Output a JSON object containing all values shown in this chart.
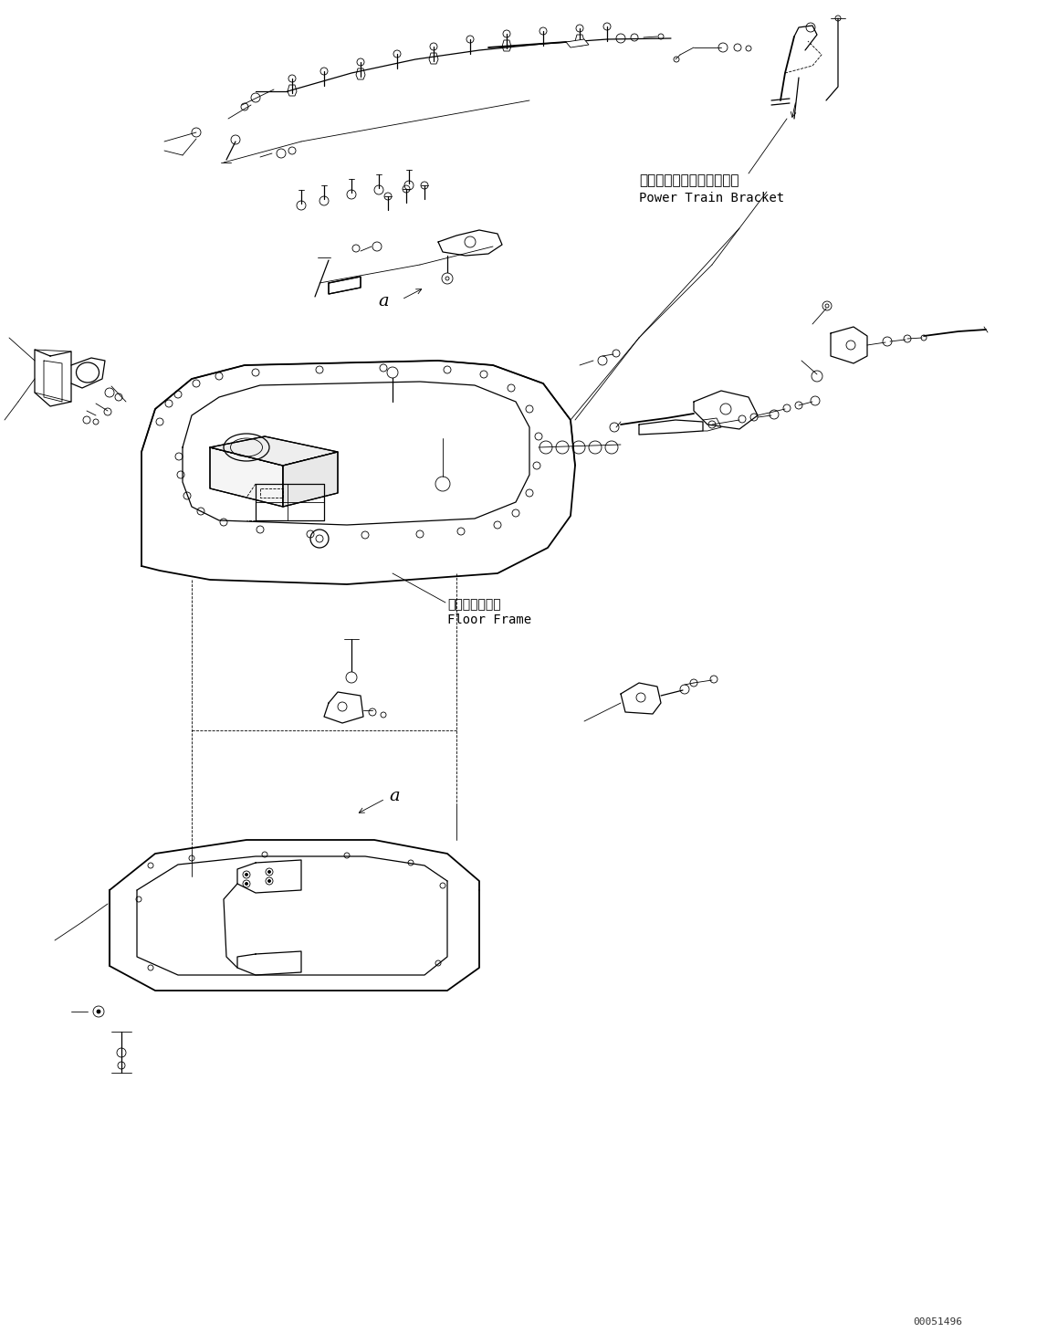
{
  "background_color": "#ffffff",
  "line_color": "#000000",
  "figure_width": 11.59,
  "figure_height": 14.59,
  "dpi": 100,
  "label_power_train_jp": "パワートレインブラケット",
  "label_power_train_en": "Power Train Bracket",
  "label_floor_frame_jp": "フロアフレーム",
  "label_floor_frame_en": "Floor Frame",
  "label_a1": "a",
  "label_a2": "a",
  "part_number": "00051496"
}
